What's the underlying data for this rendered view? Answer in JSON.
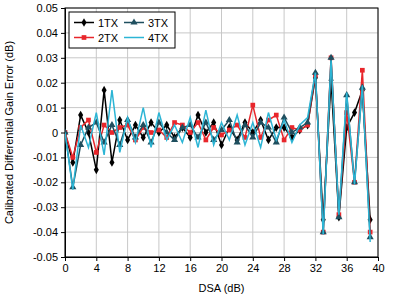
{
  "chart_data": {
    "type": "line",
    "x_label": "DSA (dB)",
    "y_label": "Calibrated Differential Gain Error (dB)",
    "x": [
      0,
      1,
      2,
      3,
      4,
      5,
      6,
      7,
      8,
      9,
      10,
      11,
      12,
      13,
      14,
      15,
      16,
      17,
      18,
      19,
      20,
      21,
      22,
      23,
      24,
      25,
      26,
      27,
      28,
      29,
      30,
      31,
      32,
      33,
      34,
      35,
      36,
      37,
      38,
      39
    ],
    "series": [
      {
        "name": "1TX",
        "color": "#000000",
        "marker": "diamond",
        "values": [
          0,
          -0.012,
          0.007,
          0,
          -0.015,
          0.017,
          -0.012,
          0.005,
          -0.003,
          0.003,
          -0.002,
          0.004,
          0,
          0.003,
          -0.002,
          0.002,
          -0.002,
          0.007,
          0,
          0.004,
          -0.005,
          0.002,
          -0.003,
          0.004,
          0,
          0.005,
          -0.003,
          0.002,
          0.002,
          -0.002,
          0.001,
          0.003,
          0.022,
          -0.035,
          0.021,
          -0.034,
          0.002,
          0.008,
          0.017,
          -0.035
        ]
      },
      {
        "name": "2TX",
        "color": "#e8262b",
        "marker": "square",
        "values": [
          0,
          -0.01,
          0.002,
          0.005,
          -0.008,
          0.003,
          0,
          0.002,
          0.003,
          -0.003,
          0.002,
          0,
          0.001,
          -0.002,
          0.004,
          0.003,
          0,
          0.004,
          -0.003,
          0.002,
          -0.001,
          0.001,
          0.003,
          -0.002,
          0.011,
          -0.002,
          0.005,
          0.007,
          -0.003,
          0.002,
          0.001,
          0.003,
          0.023,
          -0.04,
          0.03,
          -0.033,
          0.008,
          -0.02,
          0.025,
          -0.04
        ]
      },
      {
        "name": "3TX",
        "color": "#1f4f5f",
        "marker": "triangle",
        "values": [
          0,
          -0.022,
          -0.005,
          0.002,
          0.004,
          -0.004,
          0.003,
          -0.005,
          0.005,
          -0.002,
          0.003,
          -0.004,
          0.004,
          0,
          -0.003,
          0.002,
          0.003,
          -0.002,
          0.004,
          -0.003,
          0.001,
          0.005,
          -0.004,
          0.003,
          -0.002,
          0.004,
          0.002,
          -0.004,
          0.006,
          0,
          0.002,
          0.004,
          0.024,
          -0.04,
          0.03,
          -0.034,
          0.015,
          -0.02,
          0.018,
          -0.042
        ]
      },
      {
        "name": "4TX",
        "color": "#2cb5d5",
        "marker": "none",
        "values": [
          0,
          -0.023,
          0.003,
          -0.006,
          0.008,
          -0.009,
          0.017,
          -0.008,
          0.006,
          -0.004,
          0.01,
          -0.006,
          0.008,
          -0.003,
          0.003,
          -0.004,
          0.006,
          -0.006,
          0.009,
          -0.005,
          0.004,
          -0.003,
          0.007,
          -0.005,
          0.004,
          -0.006,
          0.008,
          -0.003,
          0.005,
          -0.004,
          0.003,
          0.006,
          0.024,
          -0.041,
          0.029,
          -0.033,
          0.016,
          -0.021,
          0.019,
          -0.044
        ]
      }
    ],
    "xlim": [
      0,
      40
    ],
    "xticks": [
      0,
      4,
      8,
      12,
      16,
      20,
      24,
      28,
      32,
      36,
      40
    ],
    "ylim": [
      -0.05,
      0.05
    ],
    "yticks": [
      -0.05,
      -0.04,
      -0.03,
      -0.02,
      -0.01,
      0,
      0.01,
      0.02,
      0.03,
      0.04,
      0.05
    ],
    "grid": true,
    "legend": "upper left"
  }
}
